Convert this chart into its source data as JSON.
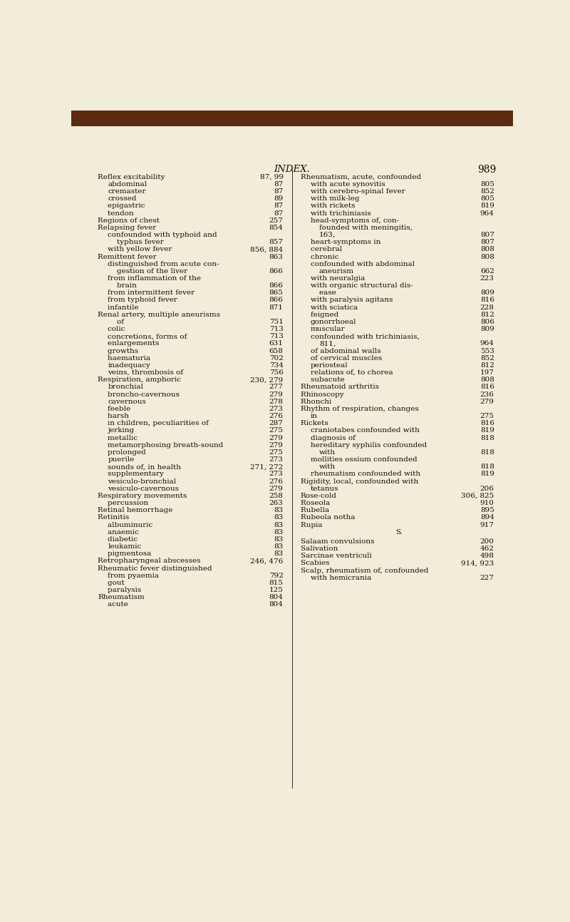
{
  "bg_color": "#f2edd8",
  "text_color": "#1a0a00",
  "page_title": "INDEX.",
  "page_number": "989",
  "title_fontsize": 9.0,
  "body_fontsize": 7.5,
  "left_col": [
    [
      "Reflex excitability",
      "87, 99",
      0
    ],
    [
      "abdominal",
      "87",
      1
    ],
    [
      "cremaster",
      "87",
      1
    ],
    [
      "crossed",
      "89",
      1
    ],
    [
      "epigastric ",
      "87",
      1
    ],
    [
      "tendon ",
      "87",
      1
    ],
    [
      "Regions of chest",
      "257",
      0
    ],
    [
      "Relapsing fever",
      "854",
      0
    ],
    [
      "confounded with typhoid and",
      "",
      1
    ],
    [
      "typhus fever",
      "857",
      2
    ],
    [
      "with yellow fever",
      "856, 884",
      1
    ],
    [
      "Remittent fever",
      "863",
      0
    ],
    [
      "distinguished from acute con-",
      "",
      1
    ],
    [
      "gestion of the liver",
      "866",
      2
    ],
    [
      "from inflammation of the",
      "",
      1
    ],
    [
      "brain ",
      "866",
      2
    ],
    [
      "from intermittent fever",
      "865",
      1
    ],
    [
      "from typhoid fever",
      "866",
      1
    ],
    [
      "infantile ",
      "871",
      1
    ],
    [
      "Renal artery, multiple aneurisms",
      "",
      0
    ],
    [
      "of ",
      "751",
      2
    ],
    [
      "colic ",
      "713",
      1
    ],
    [
      "concretions, forms of",
      "713",
      1
    ],
    [
      "enlargements ",
      "631",
      1
    ],
    [
      "growths ",
      "658",
      1
    ],
    [
      "haematuria ",
      "702",
      1
    ],
    [
      "inadequacy",
      "734",
      1
    ],
    [
      "veins, thrombosis of",
      "756",
      1
    ],
    [
      "Respiration, amphoric ",
      "230, 279",
      0
    ],
    [
      "bronchial",
      "277",
      1
    ],
    [
      "broncho-cavernous ",
      "279",
      1
    ],
    [
      "cavernous",
      "278",
      1
    ],
    [
      "feeble ",
      "273",
      1
    ],
    [
      "harsh ",
      "276",
      1
    ],
    [
      "in children, peculiarities of",
      "287",
      1
    ],
    [
      "jerking",
      "275",
      1
    ],
    [
      "metallic ",
      "279",
      1
    ],
    [
      "metamorphosing breath-sound",
      "279",
      1
    ],
    [
      "prolonged ",
      "275",
      1
    ],
    [
      "puerile",
      "273",
      1
    ],
    [
      "sounds of, in health",
      "271, 272",
      1
    ],
    [
      "supplementary ",
      "273",
      1
    ],
    [
      "vesiculo-bronchial",
      "276",
      1
    ],
    [
      "vesiculo-cavernous ",
      "279",
      1
    ],
    [
      "Respiratory movements",
      "258",
      0
    ],
    [
      "percussion ",
      "263",
      1
    ],
    [
      "Retinal hemorrhage",
      "83",
      0
    ],
    [
      "Retinitis ",
      "83",
      0
    ],
    [
      "albuminuric ",
      "83",
      1
    ],
    [
      "anaemic ",
      "83",
      1
    ],
    [
      "diabetic ",
      "83",
      1
    ],
    [
      "leukamic",
      "83",
      1
    ],
    [
      "pigmentosa ",
      "83",
      1
    ],
    [
      "Retropharyngeal abscesses",
      "246, 476",
      0
    ],
    [
      "Rheumatic fever distinguished",
      "",
      0
    ],
    [
      "from pyaemia ",
      "792",
      1
    ],
    [
      "gout ",
      "815",
      1
    ],
    [
      "paralysis ",
      "125",
      1
    ],
    [
      "Rheumatism",
      "804",
      0
    ],
    [
      "acute ",
      "804",
      1
    ]
  ],
  "right_col": [
    [
      "Rheumatism, acute, confounded",
      "",
      0
    ],
    [
      "with acute synovitis",
      "805",
      1
    ],
    [
      "with cerebro-spinal fever",
      "852",
      1
    ],
    [
      "with milk-leg",
      "805",
      1
    ],
    [
      "with rickets",
      "819",
      1
    ],
    [
      "with trichiniasis",
      "964",
      1
    ],
    [
      "head-symptoms of, con-",
      "",
      1
    ],
    [
      "founded with meningitis,",
      "",
      2
    ],
    [
      "163,",
      "807",
      2
    ],
    [
      "heart-symptoms in",
      "807",
      1
    ],
    [
      "cerebral ",
      "808",
      1
    ],
    [
      "chronic ",
      "808",
      1
    ],
    [
      "confounded with abdominal",
      "",
      1
    ],
    [
      "aneurism",
      "662",
      2
    ],
    [
      "with neuralgia",
      "223",
      1
    ],
    [
      "with organic structural dis-",
      "",
      1
    ],
    [
      "ease ",
      "809",
      2
    ],
    [
      "with paralysis agitans",
      "816",
      1
    ],
    [
      "with sciatica",
      "228",
      1
    ],
    [
      "feigned ",
      "812",
      1
    ],
    [
      "gonorrhoeal",
      "806",
      1
    ],
    [
      "muscular",
      "809",
      1
    ],
    [
      "confounded with trichiniasis,",
      "",
      1
    ],
    [
      "811,",
      "964",
      2
    ],
    [
      "of abdominal walls",
      "553",
      1
    ],
    [
      "of cervical muscles",
      "852",
      1
    ],
    [
      "periosteal",
      "812",
      1
    ],
    [
      "relations of, to chorea",
      "197",
      1
    ],
    [
      "subacute ",
      "808",
      1
    ],
    [
      "Rheumatoid arthritis",
      "816",
      0
    ],
    [
      "Rhinoscopy ",
      "236",
      0
    ],
    [
      "Rhonchi ",
      "279",
      0
    ],
    [
      "Rhythm of respiration, changes",
      "",
      0
    ],
    [
      "in",
      "275",
      1
    ],
    [
      "Rickets ",
      "816",
      0
    ],
    [
      "craniotabes confounded with",
      "819",
      1
    ],
    [
      "diagnosis of ",
      "818",
      1
    ],
    [
      "hereditary syphilis confounded",
      "",
      1
    ],
    [
      "with",
      "818",
      2
    ],
    [
      "mollities ossium confounded",
      "",
      1
    ],
    [
      "with",
      "818",
      2
    ],
    [
      "rheumatism confounded with",
      "819",
      1
    ],
    [
      "Rigidity, local, confounded with",
      "",
      0
    ],
    [
      "tetanus",
      "206",
      1
    ],
    [
      "Rose-cold",
      "306, 825",
      0
    ],
    [
      "Roseola ",
      "910",
      0
    ],
    [
      "Rubella ",
      "895",
      0
    ],
    [
      "Rubeola notha ",
      "894",
      0
    ],
    [
      "Rupia ",
      "917",
      0
    ],
    [
      "S.",
      "",
      -1
    ],
    [
      "Salaam convulsions",
      "200",
      0
    ],
    [
      "Salivation ",
      "462",
      0
    ],
    [
      "Sarcinae ventriculi ",
      "498",
      0
    ],
    [
      "Scabies ",
      "914, 923",
      0
    ],
    [
      "Scalp, rheumatism of, confounded",
      "",
      0
    ],
    [
      "with hemicrania ",
      "227",
      1
    ]
  ]
}
